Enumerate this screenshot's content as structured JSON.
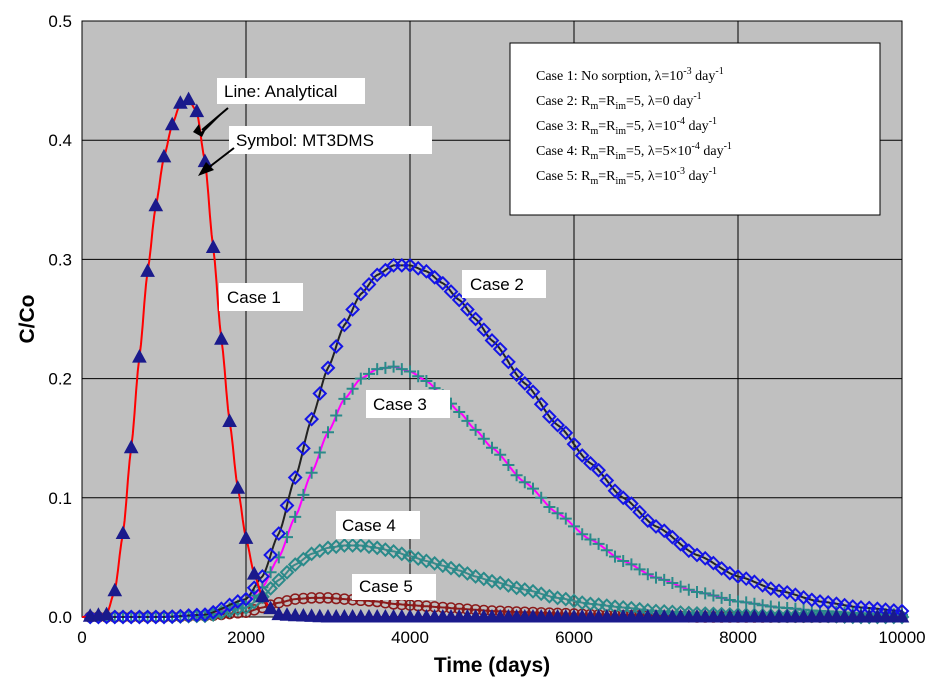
{
  "chart_data": {
    "type": "line",
    "xlabel": "Time (days)",
    "ylabel": "C/Co",
    "xlim": [
      0,
      10000
    ],
    "ylim": [
      0,
      0.5
    ],
    "xticks": [
      0,
      2000,
      4000,
      6000,
      8000,
      10000
    ],
    "yticks": [
      0.0,
      0.1,
      0.2,
      0.3,
      0.4,
      0.5
    ],
    "ytick_labels": [
      "0.0",
      "0.1",
      "0.2",
      "0.3",
      "0.4",
      "0.5"
    ],
    "grid": true,
    "plot_background": "#c0c0c0",
    "annotations": {
      "line_label": "Line: Analytical",
      "symbol_label": "Symbol: MT3DMS",
      "case_labels": [
        "Case 1",
        "Case 2",
        "Case 3",
        "Case 4",
        "Case 5"
      ]
    },
    "legend": {
      "placement": "top-right",
      "entries": [
        {
          "prefix": "Case 1: No sorption, λ=10",
          "sup": "-3",
          "mid": " day",
          "sup2": "-1"
        },
        {
          "prefix": "Case 2: R",
          "sub1": "m",
          "eq": "=R",
          "sub2": "im",
          "rest": "=5, λ=0 day",
          "sup": "-1"
        },
        {
          "prefix": "Case 3: R",
          "sub1": "m",
          "eq": "=R",
          "sub2": "im",
          "rest": "=5, λ=10",
          "sup": "-4",
          "mid": " day",
          "sup2": "-1"
        },
        {
          "prefix": "Case 4: R",
          "sub1": "m",
          "eq": "=R",
          "sub2": "im",
          "rest": "=5, λ=5×10",
          "sup": "-4",
          "mid": " day",
          "sup2": "-1"
        },
        {
          "prefix": "Case 5: R",
          "sub1": "m",
          "eq": "=R",
          "sub2": "im",
          "rest": "=5, λ=10",
          "sup": "-3",
          "mid": " day",
          "sup2": "-1"
        }
      ]
    },
    "series": [
      {
        "name": "Case 1",
        "line_color": "#ff0000",
        "marker": "triangle",
        "marker_color": "#1a1a8c",
        "x": [
          0,
          300,
          400,
          500,
          600,
          700,
          800,
          900,
          1000,
          1100,
          1200,
          1300,
          1400,
          1500,
          1600,
          1700,
          1800,
          1900,
          2000,
          2100,
          2200,
          2300,
          2400,
          2600,
          3000,
          4000,
          6000,
          8000,
          10000
        ],
        "y": [
          0,
          0.002,
          0.022,
          0.07,
          0.142,
          0.218,
          0.29,
          0.345,
          0.386,
          0.413,
          0.431,
          0.434,
          0.424,
          0.382,
          0.31,
          0.233,
          0.164,
          0.108,
          0.066,
          0.036,
          0.017,
          0.007,
          0.002,
          0.001,
          0.0,
          0.0,
          0.0,
          0.0,
          0.0
        ]
      },
      {
        "name": "Case 2",
        "line_color": "#222222",
        "marker": "diamond",
        "marker_color": "#1414e6",
        "x": [
          0,
          1000,
          1500,
          2000,
          2200,
          2400,
          2600,
          2800,
          3000,
          3200,
          3400,
          3600,
          3800,
          4000,
          4200,
          4400,
          4600,
          4800,
          5000,
          5400,
          5800,
          6200,
          6600,
          7000,
          7500,
          8000,
          8500,
          9000,
          9500,
          10000
        ],
        "y": [
          0,
          0.0,
          0.002,
          0.015,
          0.034,
          0.07,
          0.117,
          0.166,
          0.209,
          0.245,
          0.271,
          0.287,
          0.295,
          0.295,
          0.29,
          0.28,
          0.266,
          0.25,
          0.232,
          0.196,
          0.161,
          0.129,
          0.1,
          0.076,
          0.052,
          0.034,
          0.022,
          0.013,
          0.008,
          0.005
        ]
      },
      {
        "name": "Case 3",
        "line_color": "#ff00ff",
        "marker": "plus",
        "marker_color": "#2a8a8a",
        "x": [
          0,
          1000,
          1500,
          2000,
          2200,
          2400,
          2600,
          2800,
          3000,
          3200,
          3400,
          3600,
          3800,
          4000,
          4200,
          4400,
          4600,
          4800,
          5000,
          5400,
          5800,
          6200,
          6600,
          7000,
          7500,
          8000,
          8500,
          9000,
          9500,
          10000
        ],
        "y": [
          0,
          0.0,
          0.001,
          0.011,
          0.025,
          0.05,
          0.084,
          0.121,
          0.155,
          0.183,
          0.2,
          0.208,
          0.21,
          0.206,
          0.198,
          0.186,
          0.172,
          0.157,
          0.142,
          0.113,
          0.087,
          0.065,
          0.047,
          0.033,
          0.021,
          0.013,
          0.008,
          0.005,
          0.003,
          0.002
        ]
      },
      {
        "name": "Case 4",
        "line_color": "#3a8a8a",
        "marker": "diamond",
        "marker_color": "#2a8a8a",
        "x": [
          0,
          1000,
          1500,
          2000,
          2200,
          2400,
          2600,
          2800,
          3000,
          3200,
          3400,
          3600,
          3800,
          4000,
          4200,
          4400,
          4600,
          4800,
          5000,
          5400,
          5800,
          6200,
          6600,
          7000,
          7500,
          8000,
          8500,
          9000,
          9500,
          10000
        ],
        "y": [
          0,
          0.0,
          0.001,
          0.008,
          0.017,
          0.031,
          0.044,
          0.053,
          0.058,
          0.06,
          0.06,
          0.058,
          0.055,
          0.051,
          0.047,
          0.043,
          0.039,
          0.034,
          0.03,
          0.023,
          0.016,
          0.011,
          0.008,
          0.005,
          0.003,
          0.002,
          0.001,
          0.001,
          0.0,
          0.0
        ]
      },
      {
        "name": "Case 5",
        "line_color": "#8b1a1a",
        "marker": "circle",
        "marker_color": "#8b1a1a",
        "x": [
          0,
          1000,
          1500,
          2000,
          2200,
          2400,
          2600,
          2800,
          3000,
          3200,
          3400,
          3600,
          3800,
          4000,
          4200,
          4400,
          4600,
          4800,
          5000,
          5400,
          5800,
          6200,
          6600,
          7000,
          7500,
          8000,
          8500,
          9000,
          9500,
          10000
        ],
        "y": [
          0,
          0.0,
          0.001,
          0.004,
          0.008,
          0.012,
          0.015,
          0.016,
          0.016,
          0.015,
          0.014,
          0.013,
          0.011,
          0.01,
          0.009,
          0.008,
          0.007,
          0.006,
          0.005,
          0.004,
          0.003,
          0.002,
          0.001,
          0.001,
          0.0,
          0.0,
          0.0,
          0.0,
          0.0,
          0.0
        ]
      }
    ]
  }
}
